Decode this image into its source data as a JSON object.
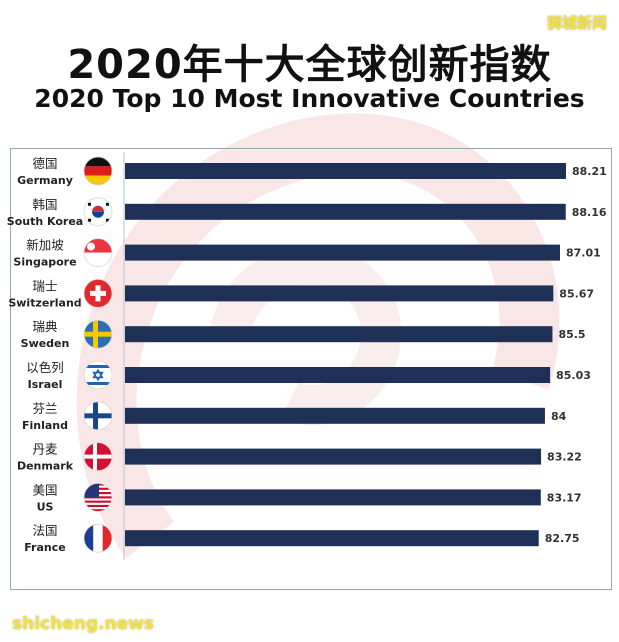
{
  "watermark_top": "狮城新闻",
  "watermark_bottom": "shicheng.news",
  "chart_data": {
    "type": "bar",
    "orientation": "horizontal",
    "title": "2020年十大全球创新指数",
    "subtitle": "2020 Top 10 Most Innovative Countries",
    "categories": [
      {
        "cn": "德国",
        "en": "Germany",
        "flag": "germany-flag-icon"
      },
      {
        "cn": "韩国",
        "en": "South Korea",
        "flag": "south-korea-flag-icon"
      },
      {
        "cn": "新加坡",
        "en": "Singapore",
        "flag": "singapore-flag-icon"
      },
      {
        "cn": "瑞士",
        "en": "Switzerland",
        "flag": "switzerland-flag-icon"
      },
      {
        "cn": "瑞典",
        "en": "Sweden",
        "flag": "sweden-flag-icon"
      },
      {
        "cn": "以色列",
        "en": "Israel",
        "flag": "israel-flag-icon"
      },
      {
        "cn": "芬兰",
        "en": "Finland",
        "flag": "finland-flag-icon"
      },
      {
        "cn": "丹麦",
        "en": "Denmark",
        "flag": "denmark-flag-icon"
      },
      {
        "cn": "美国",
        "en": "US",
        "flag": "us-flag-icon"
      },
      {
        "cn": "法国",
        "en": "France",
        "flag": "france-flag-icon"
      }
    ],
    "values": [
      88.21,
      88.16,
      87.01,
      85.67,
      85.5,
      85.03,
      84,
      83.22,
      83.17,
      82.75
    ],
    "value_labels": [
      "88.21",
      "88.16",
      "87.01",
      "85.67",
      "85.5",
      "85.03",
      "84",
      "83.22",
      "83.17",
      "82.75"
    ],
    "bar_color": "#1f3056",
    "xlim": [
      0,
      88.21
    ],
    "grid": false,
    "legend": "none"
  }
}
